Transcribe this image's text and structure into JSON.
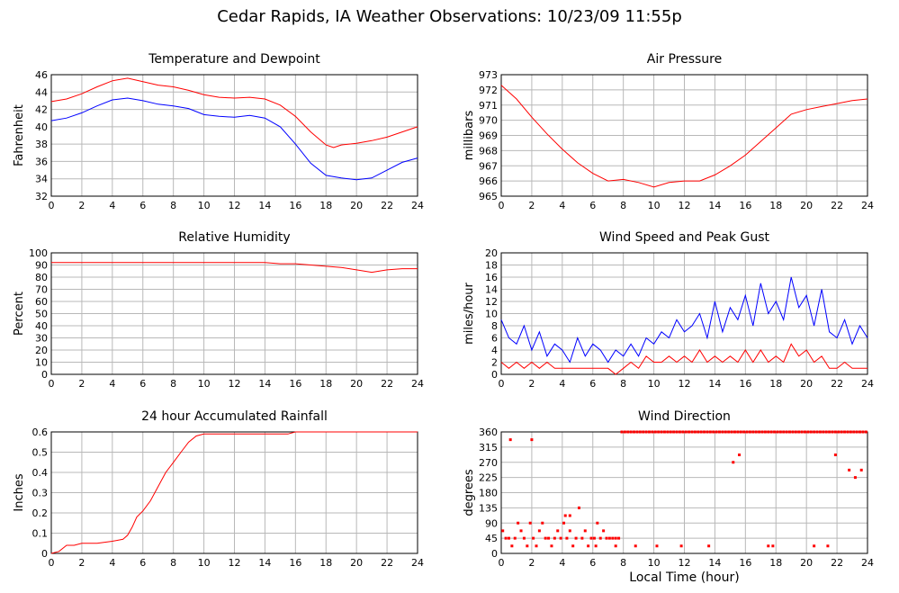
{
  "page": {
    "title": "Cedar Rapids, IA Weather Observations: 10/23/09 11:55p",
    "x_axis_label": "Local Time (hour)"
  },
  "chart_data": [
    {
      "id": "temp",
      "type": "line",
      "title": "Temperature and Dewpoint",
      "ylabel": "Fahrenheit",
      "xlabel": "",
      "xlim": [
        0,
        24
      ],
      "ylim": [
        32,
        46
      ],
      "yticks": [
        32,
        34,
        36,
        38,
        40,
        42,
        44,
        46
      ],
      "xticks": [
        0,
        2,
        4,
        6,
        8,
        10,
        12,
        14,
        16,
        18,
        20,
        22,
        24
      ],
      "grid": true,
      "series": [
        {
          "color": "#ff0000",
          "x": [
            0,
            1,
            2,
            3,
            4,
            5,
            6,
            7,
            8,
            9,
            10,
            11,
            12,
            13,
            14,
            15,
            16,
            17,
            18,
            18.5,
            19,
            20,
            21,
            22,
            23,
            24
          ],
          "y": [
            42.9,
            43.2,
            43.8,
            44.6,
            45.3,
            45.6,
            45.2,
            44.8,
            44.6,
            44.2,
            43.7,
            43.4,
            43.3,
            43.4,
            43.2,
            42.5,
            41.2,
            39.4,
            37.9,
            37.6,
            37.9,
            38.1,
            38.4,
            38.8,
            39.4,
            40.0
          ]
        },
        {
          "color": "#0000ff",
          "x": [
            0,
            1,
            2,
            3,
            4,
            5,
            6,
            7,
            8,
            9,
            10,
            11,
            12,
            13,
            14,
            15,
            16,
            17,
            18,
            19,
            20,
            21,
            22,
            23,
            24
          ],
          "y": [
            40.7,
            41.0,
            41.6,
            42.4,
            43.1,
            43.3,
            43.0,
            42.6,
            42.4,
            42.1,
            41.4,
            41.2,
            41.1,
            41.3,
            41.0,
            40.0,
            38.0,
            35.8,
            34.4,
            34.1,
            33.9,
            34.1,
            35.0,
            35.9,
            36.4
          ]
        }
      ]
    },
    {
      "id": "pressure",
      "type": "line",
      "title": "Air Pressure",
      "ylabel": "millibars",
      "xlabel": "",
      "xlim": [
        0,
        24
      ],
      "ylim": [
        965,
        973
      ],
      "yticks": [
        965,
        966,
        967,
        968,
        969,
        970,
        971,
        972,
        973
      ],
      "xticks": [
        0,
        2,
        4,
        6,
        8,
        10,
        12,
        14,
        16,
        18,
        20,
        22,
        24
      ],
      "grid": true,
      "series": [
        {
          "color": "#ff0000",
          "x": [
            0,
            1,
            2,
            3,
            4,
            5,
            6,
            7,
            8,
            9,
            10,
            11,
            12,
            13,
            14,
            15,
            16,
            17,
            18,
            19,
            20,
            21,
            22,
            23,
            24
          ],
          "y": [
            972.3,
            971.4,
            970.2,
            969.1,
            968.1,
            967.2,
            966.5,
            966.0,
            966.1,
            965.9,
            965.6,
            965.9,
            966.0,
            966.0,
            966.4,
            967.0,
            967.7,
            968.6,
            969.5,
            970.4,
            970.7,
            970.9,
            971.1,
            971.3,
            971.4
          ]
        }
      ]
    },
    {
      "id": "humidity",
      "type": "line",
      "title": "Relative Humidity",
      "ylabel": "Percent",
      "xlabel": "",
      "xlim": [
        0,
        24
      ],
      "ylim": [
        0,
        100
      ],
      "yticks": [
        0,
        10,
        20,
        30,
        40,
        50,
        60,
        70,
        80,
        90,
        100
      ],
      "xticks": [
        0,
        2,
        4,
        6,
        8,
        10,
        12,
        14,
        16,
        18,
        20,
        22,
        24
      ],
      "grid": true,
      "series": [
        {
          "color": "#ff0000",
          "x": [
            0,
            2,
            4,
            6,
            8,
            10,
            12,
            14,
            15,
            16,
            17,
            18,
            19,
            20,
            21,
            22,
            23,
            24
          ],
          "y": [
            92,
            92,
            92,
            92,
            92,
            92,
            92,
            92,
            91,
            91,
            90,
            89,
            88,
            86,
            84,
            86,
            87,
            87
          ]
        }
      ]
    },
    {
      "id": "wind",
      "type": "line",
      "title": "Wind Speed and Peak Gust",
      "ylabel": "miles/hour",
      "xlabel": "",
      "xlim": [
        0,
        24
      ],
      "ylim": [
        0,
        20
      ],
      "yticks": [
        0,
        2,
        4,
        6,
        8,
        10,
        12,
        14,
        16,
        18,
        20
      ],
      "xticks": [
        0,
        2,
        4,
        6,
        8,
        10,
        12,
        14,
        16,
        18,
        20,
        22,
        24
      ],
      "grid": true,
      "series": [
        {
          "color": "#0000ff",
          "x": [
            0,
            0.5,
            1,
            1.5,
            2,
            2.5,
            3,
            3.5,
            4,
            4.5,
            5,
            5.5,
            6,
            6.5,
            7,
            7.5,
            8,
            8.5,
            9,
            9.5,
            10,
            10.5,
            11,
            11.5,
            12,
            12.5,
            13,
            13.5,
            14,
            14.5,
            15,
            15.5,
            16,
            16.5,
            17,
            17.5,
            18,
            18.5,
            19,
            19.5,
            20,
            20.5,
            21,
            21.5,
            22,
            22.5,
            23,
            23.5,
            24
          ],
          "y": [
            9,
            6,
            5,
            8,
            4,
            7,
            3,
            5,
            4,
            2,
            6,
            3,
            5,
            4,
            2,
            4,
            3,
            5,
            3,
            6,
            5,
            7,
            6,
            9,
            7,
            8,
            10,
            6,
            12,
            7,
            11,
            9,
            13,
            8,
            15,
            10,
            12,
            9,
            16,
            11,
            13,
            8,
            14,
            7,
            6,
            9,
            5,
            8,
            6
          ]
        },
        {
          "color": "#ff0000",
          "x": [
            0,
            0.5,
            1,
            1.5,
            2,
            2.5,
            3,
            3.5,
            4,
            4.5,
            5,
            5.5,
            6,
            6.5,
            7,
            7.5,
            8,
            8.5,
            9,
            9.5,
            10,
            10.5,
            11,
            11.5,
            12,
            12.5,
            13,
            13.5,
            14,
            14.5,
            15,
            15.5,
            16,
            16.5,
            17,
            17.5,
            18,
            18.5,
            19,
            19.5,
            20,
            20.5,
            21,
            21.5,
            22,
            22.5,
            23,
            23.5,
            24
          ],
          "y": [
            2,
            1,
            2,
            1,
            2,
            1,
            2,
            1,
            1,
            1,
            1,
            1,
            1,
            1,
            1,
            0,
            1,
            2,
            1,
            3,
            2,
            2,
            3,
            2,
            3,
            2,
            4,
            2,
            3,
            2,
            3,
            2,
            4,
            2,
            4,
            2,
            3,
            2,
            5,
            3,
            4,
            2,
            3,
            1,
            1,
            2,
            1,
            1,
            1
          ]
        }
      ]
    },
    {
      "id": "rain",
      "type": "line",
      "title": "24 hour Accumulated Rainfall",
      "ylabel": "Inches",
      "xlabel": "",
      "xlim": [
        0,
        24
      ],
      "ylim": [
        0,
        0.6
      ],
      "yticks": [
        0,
        0.1,
        0.2,
        0.3,
        0.4,
        0.5,
        0.6
      ],
      "xticks": [
        0,
        2,
        4,
        6,
        8,
        10,
        12,
        14,
        16,
        18,
        20,
        22,
        24
      ],
      "grid": true,
      "series": [
        {
          "color": "#ff0000",
          "x": [
            0,
            0.5,
            1,
            1.5,
            2,
            3,
            4,
            4.7,
            5,
            5.3,
            5.6,
            6,
            6.5,
            7,
            7.5,
            8,
            8.5,
            9,
            9.5,
            10,
            11,
            12,
            13,
            14,
            15.5,
            16,
            18,
            20,
            22,
            24
          ],
          "y": [
            0,
            0.01,
            0.04,
            0.04,
            0.05,
            0.05,
            0.06,
            0.07,
            0.09,
            0.13,
            0.18,
            0.21,
            0.26,
            0.33,
            0.4,
            0.45,
            0.5,
            0.55,
            0.58,
            0.59,
            0.59,
            0.59,
            0.59,
            0.59,
            0.59,
            0.6,
            0.6,
            0.6,
            0.6,
            0.6
          ]
        }
      ]
    },
    {
      "id": "direction",
      "type": "scatter",
      "title": "Wind Direction",
      "ylabel": "degrees",
      "xlabel": "Local Time (hour)",
      "xlim": [
        0,
        24
      ],
      "ylim": [
        0,
        360
      ],
      "yticks": [
        0,
        45,
        90,
        135,
        180,
        225,
        270,
        315,
        360
      ],
      "xticks": [
        0,
        2,
        4,
        6,
        8,
        10,
        12,
        14,
        16,
        18,
        20,
        22,
        24
      ],
      "grid": true,
      "series": [
        {
          "color": "#ff0000",
          "x": [
            0.1,
            0.3,
            0.5,
            0.7,
            0.9,
            1.1,
            1.3,
            1.5,
            1.7,
            1.9,
            2.1,
            2.3,
            2.5,
            2.7,
            2.9,
            3.1,
            3.3,
            3.5,
            3.7,
            3.9,
            4.1,
            4.3,
            4.5,
            4.7,
            4.9,
            5.1,
            5.3,
            5.5,
            5.7,
            5.9,
            6.1,
            6.3,
            6.5,
            6.7,
            6.9,
            7.1,
            7.3,
            7.5,
            7.7,
            7.9,
            8.1,
            8.3,
            8.5,
            8.7,
            8.9,
            9.1,
            9.3,
            9.5,
            9.7,
            9.9,
            10.1,
            10.3,
            10.5,
            10.7,
            10.9,
            11.1,
            11.3,
            11.5,
            11.7,
            11.9,
            12.1,
            12.3,
            12.5,
            12.7,
            12.9,
            13.1,
            13.3,
            13.5,
            13.7,
            13.9,
            14.1,
            14.3,
            14.5,
            14.7,
            14.9,
            15.1,
            15.3,
            15.5,
            15.7,
            15.9,
            16.1,
            16.3,
            16.5,
            16.7,
            16.9,
            17.1,
            17.3,
            17.5,
            17.7,
            17.9,
            18.1,
            18.3,
            18.5,
            18.7,
            18.9,
            19.1,
            19.3,
            19.5,
            19.7,
            19.9,
            20.1,
            20.3,
            20.5,
            20.7,
            20.9,
            21.1,
            21.3,
            21.5,
            21.7,
            21.9,
            22.1,
            22.3,
            22.5,
            22.7,
            22.9,
            23.1,
            23.3,
            23.5,
            23.7,
            23.9,
            0.6,
            2.0,
            4.2,
            4.5,
            6.2,
            7.5,
            8.8,
            10.2,
            11.8,
            13.6,
            17.5,
            17.8,
            20.5,
            21.4,
            22.8,
            23.2,
            23.6,
            15.2,
            15.6,
            21.9
          ],
          "y": [
            67,
            45,
            45,
            22,
            45,
            90,
            67,
            45,
            22,
            90,
            45,
            22,
            67,
            90,
            45,
            45,
            22,
            45,
            67,
            45,
            90,
            45,
            67,
            22,
            45,
            135,
            45,
            67,
            22,
            45,
            45,
            90,
            45,
            67,
            45,
            45,
            45,
            45,
            45,
            360,
            360,
            360,
            360,
            360,
            360,
            360,
            360,
            360,
            360,
            360,
            360,
            360,
            360,
            360,
            360,
            360,
            360,
            360,
            360,
            360,
            360,
            360,
            360,
            360,
            360,
            360,
            360,
            360,
            360,
            360,
            360,
            360,
            360,
            360,
            360,
            360,
            360,
            360,
            360,
            360,
            360,
            360,
            360,
            360,
            360,
            360,
            360,
            360,
            360,
            360,
            360,
            360,
            360,
            360,
            360,
            360,
            360,
            360,
            360,
            360,
            360,
            360,
            360,
            360,
            360,
            360,
            360,
            360,
            360,
            360,
            360,
            360,
            360,
            360,
            360,
            360,
            360,
            360,
            360,
            360,
            337,
            337,
            112,
            112,
            22,
            22,
            22,
            22,
            22,
            22,
            22,
            22,
            22,
            22,
            247,
            225,
            247,
            270,
            292,
            292
          ]
        }
      ]
    }
  ]
}
